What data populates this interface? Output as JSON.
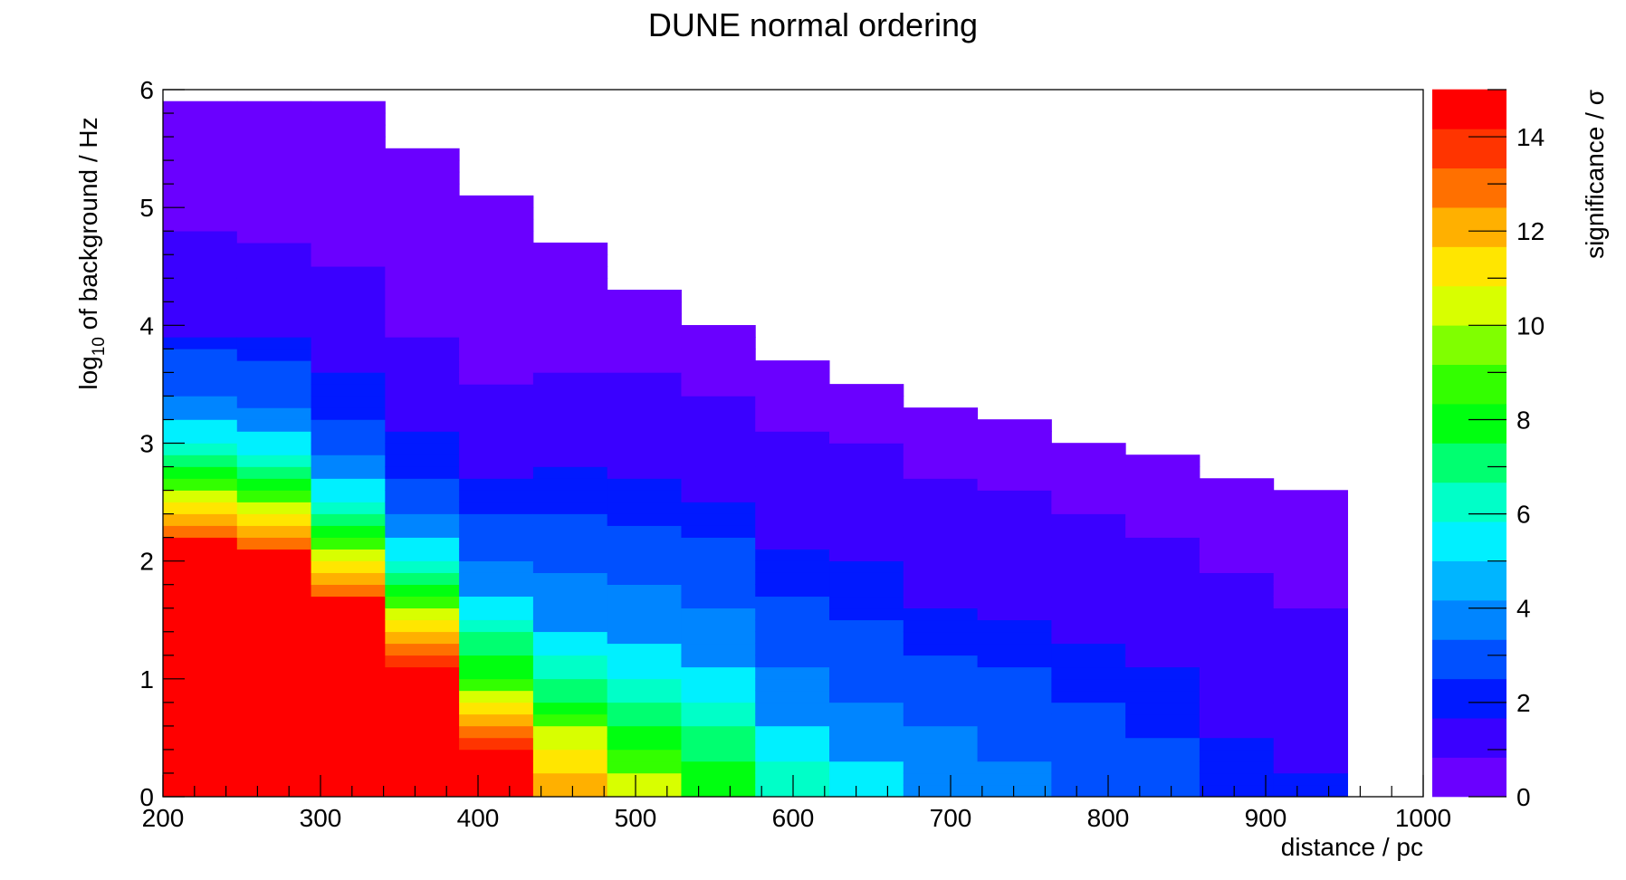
{
  "chart_data": {
    "type": "heatmap",
    "title": "DUNE normal ordering",
    "xlabel": "distance / pc",
    "ylabel_prefix": "log",
    "ylabel_sub": "10",
    "ylabel_suffix": " of background / Hz",
    "zlabel": "significance /  σ",
    "xlim": [
      200,
      1000
    ],
    "ylim": [
      0,
      6
    ],
    "zlim": [
      0,
      15
    ],
    "x_ticks": [
      "200",
      "300",
      "400",
      "500",
      "600",
      "700",
      "800",
      "900",
      "1000"
    ],
    "y_ticks": [
      "0",
      "1",
      "2",
      "3",
      "4",
      "5",
      "6"
    ],
    "z_ticks": [
      "0",
      "2",
      "4",
      "6",
      "8",
      "10",
      "12",
      "14"
    ],
    "x_bin_edges": [
      200,
      247,
      294,
      341,
      388,
      435,
      482,
      529,
      576,
      623,
      670,
      717,
      764,
      811,
      858,
      905,
      952
    ],
    "y_bin_width": 0.1,
    "columns": [
      {
        "x": 223.5,
        "significance": [
          15,
          15,
          15,
          15,
          15,
          15,
          15,
          15,
          15,
          15,
          15,
          15,
          15,
          15,
          15,
          15,
          15,
          15,
          15,
          15,
          15,
          15,
          13,
          12,
          11,
          10,
          9,
          8,
          7,
          6,
          5,
          5,
          4,
          3.5,
          3,
          3,
          2.5,
          2.5,
          2,
          1.5,
          1.5,
          1.5,
          1,
          1,
          1,
          1,
          1,
          1,
          0.5,
          0.5,
          0.5,
          0.5,
          0.5,
          0.5,
          0.5,
          0.5,
          0.5,
          0.5,
          0.5
        ]
      },
      {
        "x": 270.5,
        "significance": [
          15,
          15,
          15,
          15,
          15,
          15,
          15,
          15,
          15,
          15,
          15,
          15,
          15,
          15,
          15,
          15,
          15,
          15,
          15,
          15,
          15,
          13,
          12,
          11,
          10,
          9,
          8,
          7,
          6,
          5,
          5,
          4,
          3.5,
          3,
          3,
          2.5,
          2.5,
          2,
          2,
          1.5,
          1.5,
          1.5,
          1,
          1,
          1,
          1,
          1,
          0.5,
          0.5,
          0.5,
          0.5,
          0.5,
          0.5,
          0.5,
          0.5,
          0.5,
          0.5,
          0.5,
          0.5
        ]
      },
      {
        "x": 317.5,
        "significance": [
          15,
          15,
          15,
          15,
          15,
          15,
          15,
          15,
          15,
          15,
          15,
          15,
          15,
          15,
          15,
          15,
          15,
          13,
          12,
          11,
          10,
          9,
          8,
          7,
          6,
          5,
          5,
          4,
          3.5,
          3,
          3,
          2.5,
          2,
          2,
          2,
          2,
          1.5,
          1.5,
          1.5,
          1.5,
          1,
          1,
          1,
          1,
          1,
          0.5,
          0.5,
          0.5,
          0.5,
          0.5,
          0.5,
          0.5,
          0.5,
          0.5,
          0.5,
          0.5,
          0.5,
          0.5,
          0.5
        ]
      },
      {
        "x": 364.5,
        "significance": [
          15,
          15,
          15,
          15,
          15,
          15,
          15,
          15,
          15,
          15,
          15,
          14,
          13,
          12,
          11,
          10,
          9,
          8,
          7,
          6,
          5,
          5,
          4,
          3.5,
          3,
          3,
          2.5,
          2,
          2,
          2,
          2,
          1.5,
          1.5,
          1.5,
          1.5,
          1,
          1,
          1,
          1,
          0.5,
          0.5,
          0.5,
          0.5,
          0.5,
          0.5,
          0.5,
          0.5,
          0.5,
          0.5,
          0.5,
          0.5,
          0.5,
          0.5,
          0.5,
          0.5
        ]
      },
      {
        "x": 411.5,
        "significance": [
          15,
          15,
          15,
          15,
          14,
          13,
          12,
          11,
          10,
          9,
          8,
          8,
          7,
          7,
          6,
          5,
          5,
          4,
          4,
          3.5,
          3,
          3,
          2.5,
          2.5,
          2,
          2,
          2,
          1.5,
          1.5,
          1.5,
          1.5,
          1,
          1,
          1,
          1,
          0.5,
          0.5,
          0.5,
          0.5,
          0.5,
          0.5,
          0.5,
          0.5,
          0.5,
          0.5,
          0.5,
          0.5,
          0.5,
          0.5,
          0.5,
          0.5
        ]
      },
      {
        "x": 458.5,
        "significance": [
          12,
          12,
          11,
          11,
          10,
          10,
          9,
          8,
          7,
          7,
          6,
          6,
          5,
          5,
          4,
          4,
          4,
          3.5,
          3.5,
          3,
          3,
          3,
          2.5,
          2.5,
          2,
          2,
          2,
          2,
          1.5,
          1.5,
          1.5,
          1.5,
          1,
          1,
          1,
          1,
          0.5,
          0.5,
          0.5,
          0.5,
          0.5,
          0.5,
          0.5,
          0.5,
          0.5,
          0.5,
          0.5
        ]
      },
      {
        "x": 505.5,
        "significance": [
          10,
          10,
          9,
          9,
          8,
          8,
          7,
          7,
          6,
          6,
          5,
          5,
          5,
          4,
          4,
          4,
          3.5,
          3.5,
          3,
          3,
          3,
          2.5,
          2.5,
          2,
          2,
          2,
          2,
          1.5,
          1.5,
          1.5,
          1.5,
          1.5,
          1,
          1,
          1,
          1,
          0.5,
          0.5,
          0.5,
          0.5,
          0.5,
          0.5,
          0.5
        ]
      },
      {
        "x": 552.5,
        "significance": [
          8,
          8,
          8,
          7,
          7,
          7,
          6,
          6,
          5,
          5,
          5,
          4,
          4,
          4,
          3.5,
          3.5,
          3,
          3,
          3,
          2.5,
          2.5,
          2.5,
          2,
          2,
          2,
          1.5,
          1.5,
          1.5,
          1.5,
          1.5,
          1,
          1,
          1,
          1,
          0.5,
          0.5,
          0.5,
          0.5,
          0.5,
          0.5
        ]
      },
      {
        "x": 599.5,
        "significance": [
          6,
          6,
          6,
          5,
          5,
          5,
          4,
          4,
          4,
          3.5,
          3.5,
          3,
          3,
          3,
          2.5,
          2.5,
          2.5,
          2,
          2,
          2,
          2,
          1.5,
          1.5,
          1.5,
          1.5,
          1.5,
          1,
          1,
          1,
          1,
          1,
          0.5,
          0.5,
          0.5,
          0.5,
          0.5,
          0.5
        ]
      },
      {
        "x": 646.5,
        "significance": [
          5,
          5,
          5,
          4,
          4,
          4,
          3.5,
          3.5,
          3,
          3,
          3,
          3,
          2.5,
          2.5,
          2.5,
          2,
          2,
          2,
          2,
          2,
          1.5,
          1.5,
          1.5,
          1.5,
          1.5,
          1,
          1,
          1,
          1,
          1,
          0.5,
          0.5,
          0.5,
          0.5,
          0.5
        ]
      },
      {
        "x": 693.5,
        "significance": [
          4,
          4,
          4,
          3.5,
          3.5,
          3.5,
          3,
          3,
          3,
          2.5,
          2.5,
          2.5,
          2,
          2,
          2,
          2,
          1.5,
          1.5,
          1.5,
          1.5,
          1.5,
          1.5,
          1,
          1,
          1,
          1,
          1,
          0.5,
          0.5,
          0.5,
          0.5,
          0.5,
          0.5
        ]
      },
      {
        "x": 740.5,
        "significance": [
          3.5,
          3.5,
          3.5,
          3,
          3,
          3,
          3,
          2.5,
          2.5,
          2.5,
          2.5,
          2,
          2,
          2,
          2,
          1.5,
          1.5,
          1.5,
          1.5,
          1.5,
          1.5,
          1,
          1,
          1,
          1,
          1,
          0.5,
          0.5,
          0.5,
          0.5,
          0.5,
          0.5
        ]
      },
      {
        "x": 787.5,
        "significance": [
          3,
          3,
          3,
          3,
          2.5,
          2.5,
          2.5,
          2.5,
          2,
          2,
          2,
          2,
          2,
          1.5,
          1.5,
          1.5,
          1.5,
          1.5,
          1.5,
          1,
          1,
          1,
          1,
          1,
          0.5,
          0.5,
          0.5,
          0.5,
          0.5,
          0.5
        ]
      },
      {
        "x": 834.5,
        "significance": [
          2.5,
          2.5,
          2.5,
          2.5,
          2.5,
          2,
          2,
          2,
          2,
          2,
          2,
          1.5,
          1.5,
          1.5,
          1.5,
          1.5,
          1.5,
          1,
          1,
          1,
          1,
          1,
          0.5,
          0.5,
          0.5,
          0.5,
          0.5,
          0.5,
          0.5
        ]
      },
      {
        "x": 881.5,
        "significance": [
          2,
          2,
          2,
          2,
          2,
          1.5,
          1.5,
          1.5,
          1.5,
          1.5,
          1.5,
          1.5,
          1.5,
          1,
          1,
          1,
          1,
          1,
          1,
          0.5,
          0.5,
          0.5,
          0.5,
          0.5,
          0.5,
          0.5,
          0.5
        ]
      },
      {
        "x": 928.5,
        "significance": [
          2,
          2,
          1.5,
          1.5,
          1.5,
          1.5,
          1.5,
          1.5,
          1,
          1,
          1,
          1,
          1,
          1,
          1,
          1,
          0.5,
          0.5,
          0.5,
          0.5,
          0.5,
          0.5,
          0.5,
          0.5,
          0.5,
          0.5
        ]
      }
    ],
    "palette": [
      "#6a00ff",
      "#3a00ff",
      "#0019ff",
      "#0050ff",
      "#0085ff",
      "#00b5ff",
      "#00f0ff",
      "#00ffc8",
      "#00ff70",
      "#00ff10",
      "#33ff00",
      "#80ff00",
      "#d8ff00",
      "#ffe600",
      "#ffb000",
      "#ff7000",
      "#ff3400",
      "#ff0000"
    ],
    "colorbar_colors": [
      "#6a00ff",
      "#3a00ff",
      "#0019ff",
      "#0050ff",
      "#0085ff",
      "#00b5ff",
      "#00f0ff",
      "#00ffc8",
      "#00ff70",
      "#00ff10",
      "#33ff00",
      "#80ff00",
      "#d8ff00",
      "#ffe600",
      "#ffb000",
      "#ff7000",
      "#ff3400",
      "#ff0000"
    ]
  }
}
